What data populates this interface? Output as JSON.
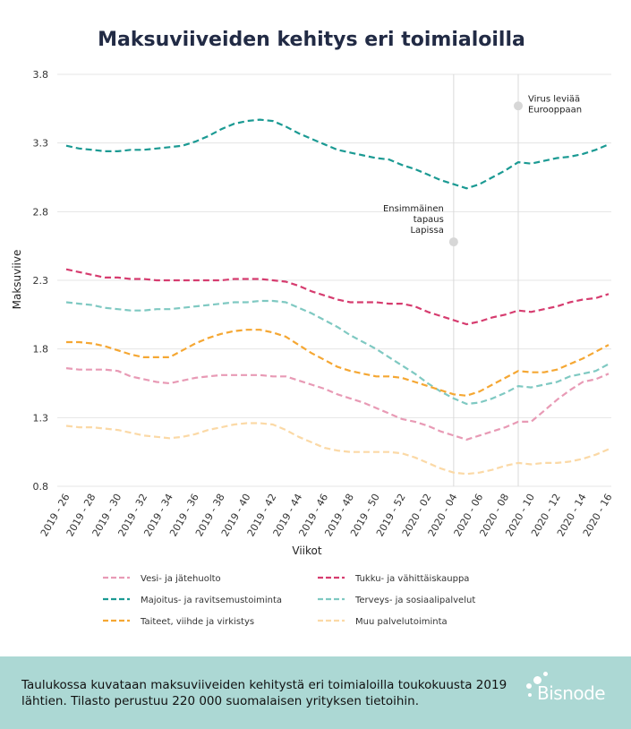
{
  "footer": {
    "text": "Taulukossa kuvataan maksuviiveiden kehitystä eri toimialoilla toukokuusta 2019 lähtien. Tilasto perustuu 220 000 suomalaisen yrityksen tietoihin.",
    "logo_text": "Bisnode"
  },
  "chart_data": {
    "type": "line",
    "title": "Maksuviiveiden kehitys eri toimialoilla",
    "xlabel": "Viikot",
    "ylabel": "Maksuviive",
    "ylim": [
      0.8,
      3.8
    ],
    "yticks": [
      0.8,
      1.3,
      1.8,
      2.3,
      2.8,
      3.3,
      3.8
    ],
    "yticklabels": [
      "0.8",
      "1.3",
      "1.8",
      "2.3",
      "2.8",
      "3.3",
      "3.8"
    ],
    "grid": "horizontal",
    "legend_position": "bottom",
    "xticklabels": [
      "2019 - 26",
      "2019 - 28",
      "2019 - 30",
      "2019 - 32",
      "2019 - 34",
      "2019 - 36",
      "2019 - 38",
      "2019 - 40",
      "2019 - 42",
      "2019 - 44",
      "2019 - 46",
      "2019 - 48",
      "2019 - 50",
      "2019 - 52",
      "2020 - 02",
      "2020 - 04",
      "2020 - 06",
      "2020 - 08",
      "2020 - 10",
      "2020 - 12",
      "2020 - 14",
      "2020 - 16"
    ],
    "x": [
      "2019 - 26",
      "2019 - 27",
      "2019 - 28",
      "2019 - 29",
      "2019 - 30",
      "2019 - 31",
      "2019 - 32",
      "2019 - 33",
      "2019 - 34",
      "2019 - 35",
      "2019 - 36",
      "2019 - 37",
      "2019 - 38",
      "2019 - 39",
      "2019 - 40",
      "2019 - 41",
      "2019 - 42",
      "2019 - 43",
      "2019 - 44",
      "2019 - 45",
      "2019 - 46",
      "2019 - 47",
      "2019 - 48",
      "2019 - 49",
      "2019 - 50",
      "2019 - 51",
      "2019 - 52",
      "2020 - 01",
      "2020 - 02",
      "2020 - 03",
      "2020 - 04",
      "2020 - 05",
      "2020 - 06",
      "2020 - 07",
      "2020 - 08",
      "2020 - 09",
      "2020 - 10",
      "2020 - 11",
      "2020 - 12",
      "2020 - 13",
      "2020 - 14",
      "2020 - 15",
      "2020 - 16"
    ],
    "series": [
      {
        "name": "Vesi- ja jätehuolto",
        "color": "#e89ab5",
        "values": [
          1.66,
          1.65,
          1.65,
          1.65,
          1.64,
          1.6,
          1.58,
          1.56,
          1.55,
          1.57,
          1.59,
          1.6,
          1.61,
          1.61,
          1.61,
          1.61,
          1.6,
          1.6,
          1.57,
          1.54,
          1.51,
          1.47,
          1.44,
          1.41,
          1.37,
          1.33,
          1.29,
          1.27,
          1.24,
          1.2,
          1.17,
          1.14,
          1.17,
          1.2,
          1.23,
          1.27,
          1.27,
          1.35,
          1.43,
          1.5,
          1.56,
          1.58,
          1.62
        ]
      },
      {
        "name": "Tukku- ja vähittäiskauppa",
        "color": "#d63c6f",
        "values": [
          2.38,
          2.36,
          2.34,
          2.32,
          2.32,
          2.31,
          2.31,
          2.3,
          2.3,
          2.3,
          2.3,
          2.3,
          2.3,
          2.31,
          2.31,
          2.31,
          2.3,
          2.29,
          2.26,
          2.22,
          2.19,
          2.16,
          2.14,
          2.14,
          2.14,
          2.13,
          2.13,
          2.11,
          2.07,
          2.04,
          2.01,
          1.98,
          2.0,
          2.03,
          2.05,
          2.08,
          2.07,
          2.09,
          2.11,
          2.14,
          2.16,
          2.17,
          2.2
        ]
      },
      {
        "name": "Majoitus- ja ravitsemustoiminta",
        "color": "#1b9a93",
        "values": [
          3.28,
          3.26,
          3.25,
          3.24,
          3.24,
          3.25,
          3.25,
          3.26,
          3.27,
          3.28,
          3.31,
          3.35,
          3.4,
          3.44,
          3.46,
          3.47,
          3.46,
          3.42,
          3.37,
          3.33,
          3.29,
          3.25,
          3.23,
          3.21,
          3.19,
          3.18,
          3.14,
          3.11,
          3.07,
          3.03,
          3.0,
          2.97,
          3.0,
          3.05,
          3.1,
          3.16,
          3.15,
          3.17,
          3.19,
          3.2,
          3.22,
          3.25,
          3.29
        ]
      },
      {
        "name": "Terveys- ja sosiaalipalvelut",
        "color": "#7fc9c2",
        "values": [
          2.14,
          2.13,
          2.12,
          2.1,
          2.09,
          2.08,
          2.08,
          2.09,
          2.09,
          2.1,
          2.11,
          2.12,
          2.13,
          2.14,
          2.14,
          2.15,
          2.15,
          2.14,
          2.1,
          2.06,
          2.01,
          1.96,
          1.9,
          1.85,
          1.8,
          1.74,
          1.68,
          1.62,
          1.55,
          1.49,
          1.44,
          1.4,
          1.41,
          1.44,
          1.48,
          1.53,
          1.52,
          1.54,
          1.56,
          1.6,
          1.62,
          1.64,
          1.69
        ]
      },
      {
        "name": "Taiteet, viihde ja virkistys",
        "color": "#f5a733",
        "values": [
          1.85,
          1.85,
          1.84,
          1.82,
          1.79,
          1.76,
          1.74,
          1.74,
          1.74,
          1.79,
          1.84,
          1.88,
          1.91,
          1.93,
          1.94,
          1.94,
          1.92,
          1.89,
          1.83,
          1.77,
          1.72,
          1.67,
          1.64,
          1.62,
          1.6,
          1.6,
          1.59,
          1.56,
          1.53,
          1.5,
          1.47,
          1.46,
          1.49,
          1.54,
          1.59,
          1.64,
          1.63,
          1.63,
          1.65,
          1.69,
          1.73,
          1.78,
          1.83
        ]
      },
      {
        "name": "Muu palvelutoiminta",
        "color": "#fbd9a6",
        "values": [
          1.24,
          1.23,
          1.23,
          1.22,
          1.21,
          1.19,
          1.17,
          1.16,
          1.15,
          1.16,
          1.18,
          1.21,
          1.23,
          1.25,
          1.26,
          1.26,
          1.25,
          1.21,
          1.16,
          1.12,
          1.08,
          1.06,
          1.05,
          1.05,
          1.05,
          1.05,
          1.04,
          1.01,
          0.97,
          0.93,
          0.9,
          0.89,
          0.9,
          0.92,
          0.95,
          0.97,
          0.96,
          0.97,
          0.97,
          0.98,
          1.0,
          1.03,
          1.07
        ]
      }
    ],
    "annotations": [
      {
        "x": "2020 - 04",
        "y": 2.58,
        "lines": [
          "Ensimmäinen",
          "tapaus",
          "Lapissa"
        ]
      },
      {
        "x": "2020 - 09",
        "y": 3.57,
        "lines": [
          "Virus leviää",
          "Eurooppaan"
        ]
      }
    ]
  }
}
